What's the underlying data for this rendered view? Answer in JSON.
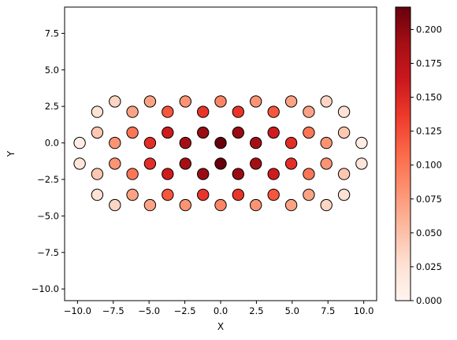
{
  "chart_data": {
    "type": "scatter",
    "xlabel": "X",
    "ylabel": "Y",
    "xlim": [
      -10.9,
      10.9
    ],
    "ylim": [
      -10.8,
      9.3
    ],
    "xticks": [
      -10.0,
      -7.5,
      -5.0,
      -2.5,
      0.0,
      2.5,
      5.0,
      7.5,
      10.0
    ],
    "xtick_labels": [
      "−10.0",
      "−7.5",
      "−5.0",
      "−2.5",
      "0.0",
      "2.5",
      "5.0",
      "7.5",
      "10.0"
    ],
    "yticks": [
      -10.0,
      -7.5,
      -5.0,
      -2.5,
      0.0,
      2.5,
      5.0,
      7.5
    ],
    "ytick_labels": [
      "−10.0",
      "−7.5",
      "−5.0",
      "−2.5",
      "0.0",
      "2.5",
      "5.0",
      "7.5"
    ],
    "grid": false,
    "colormap": "Reds",
    "colorbar": {
      "range": [
        0.0,
        0.2165
      ],
      "ticks": [
        0.0,
        0.025,
        0.05,
        0.075,
        0.1,
        0.125,
        0.15,
        0.175,
        0.2
      ],
      "tick_labels": [
        "0.000",
        "0.025",
        "0.050",
        "0.075",
        "0.100",
        "0.125",
        "0.150",
        "0.175",
        "0.200"
      ]
    },
    "marker_edge_color": "#000000",
    "points": [
      {
        "x": -9.85,
        "y": 0.0,
        "v": 0.01
      },
      {
        "x": 9.85,
        "y": 0.0,
        "v": 0.01
      },
      {
        "x": -9.85,
        "y": -1.42,
        "v": 0.02
      },
      {
        "x": 9.85,
        "y": -1.42,
        "v": 0.02
      },
      {
        "x": -8.62,
        "y": 2.13,
        "v": 0.025
      },
      {
        "x": -8.62,
        "y": 0.71,
        "v": 0.045
      },
      {
        "x": -8.62,
        "y": -2.13,
        "v": 0.045
      },
      {
        "x": -8.62,
        "y": -3.55,
        "v": 0.025
      },
      {
        "x": 8.62,
        "y": 2.13,
        "v": 0.025
      },
      {
        "x": 8.62,
        "y": 0.71,
        "v": 0.045
      },
      {
        "x": 8.62,
        "y": -2.13,
        "v": 0.045
      },
      {
        "x": 8.62,
        "y": -3.55,
        "v": 0.025
      },
      {
        "x": -7.39,
        "y": 2.84,
        "v": 0.035
      },
      {
        "x": -7.39,
        "y": 0.0,
        "v": 0.08
      },
      {
        "x": -7.39,
        "y": -1.42,
        "v": 0.08
      },
      {
        "x": -7.39,
        "y": -4.26,
        "v": 0.035
      },
      {
        "x": 7.39,
        "y": 2.84,
        "v": 0.035
      },
      {
        "x": 7.39,
        "y": 0.0,
        "v": 0.08
      },
      {
        "x": 7.39,
        "y": -1.42,
        "v": 0.08
      },
      {
        "x": 7.39,
        "y": -4.26,
        "v": 0.035
      },
      {
        "x": -6.16,
        "y": 2.13,
        "v": 0.07
      },
      {
        "x": -6.16,
        "y": 0.71,
        "v": 0.1
      },
      {
        "x": -6.16,
        "y": -2.13,
        "v": 0.1
      },
      {
        "x": -6.16,
        "y": -3.55,
        "v": 0.07
      },
      {
        "x": 6.16,
        "y": 2.13,
        "v": 0.07
      },
      {
        "x": 6.16,
        "y": 0.71,
        "v": 0.1
      },
      {
        "x": 6.16,
        "y": -2.13,
        "v": 0.1
      },
      {
        "x": 6.16,
        "y": -3.55,
        "v": 0.07
      },
      {
        "x": -4.93,
        "y": 2.84,
        "v": 0.07
      },
      {
        "x": -4.93,
        "y": 0.0,
        "v": 0.145
      },
      {
        "x": -4.93,
        "y": -1.42,
        "v": 0.145
      },
      {
        "x": -4.93,
        "y": -4.26,
        "v": 0.07
      },
      {
        "x": 4.93,
        "y": 2.84,
        "v": 0.07
      },
      {
        "x": 4.93,
        "y": 0.0,
        "v": 0.145
      },
      {
        "x": 4.93,
        "y": -1.42,
        "v": 0.145
      },
      {
        "x": 4.93,
        "y": -4.26,
        "v": 0.07
      },
      {
        "x": -3.7,
        "y": 2.13,
        "v": 0.12
      },
      {
        "x": -3.7,
        "y": 0.71,
        "v": 0.16
      },
      {
        "x": -3.7,
        "y": -2.13,
        "v": 0.16
      },
      {
        "x": -3.7,
        "y": -3.55,
        "v": 0.12
      },
      {
        "x": 3.7,
        "y": 2.13,
        "v": 0.12
      },
      {
        "x": 3.7,
        "y": 0.71,
        "v": 0.16
      },
      {
        "x": 3.7,
        "y": -2.13,
        "v": 0.16
      },
      {
        "x": 3.7,
        "y": -3.55,
        "v": 0.12
      },
      {
        "x": -2.46,
        "y": 2.84,
        "v": 0.08
      },
      {
        "x": -2.46,
        "y": 0.0,
        "v": 0.19
      },
      {
        "x": -2.46,
        "y": -1.42,
        "v": 0.19
      },
      {
        "x": -2.46,
        "y": -4.26,
        "v": 0.08
      },
      {
        "x": 2.46,
        "y": 2.84,
        "v": 0.08
      },
      {
        "x": 2.46,
        "y": 0.0,
        "v": 0.19
      },
      {
        "x": 2.46,
        "y": -1.42,
        "v": 0.19
      },
      {
        "x": 2.46,
        "y": -4.26,
        "v": 0.08
      },
      {
        "x": -1.23,
        "y": 2.13,
        "v": 0.14
      },
      {
        "x": -1.23,
        "y": 0.71,
        "v": 0.195
      },
      {
        "x": -1.23,
        "y": -2.13,
        "v": 0.195
      },
      {
        "x": -1.23,
        "y": -3.55,
        "v": 0.14
      },
      {
        "x": 1.23,
        "y": 2.13,
        "v": 0.14
      },
      {
        "x": 1.23,
        "y": 0.71,
        "v": 0.195
      },
      {
        "x": 1.23,
        "y": -2.13,
        "v": 0.195
      },
      {
        "x": 1.23,
        "y": -3.55,
        "v": 0.14
      },
      {
        "x": 0.0,
        "y": 2.84,
        "v": 0.09
      },
      {
        "x": 0.0,
        "y": 0.0,
        "v": 0.2165
      },
      {
        "x": 0.0,
        "y": -1.42,
        "v": 0.2165
      },
      {
        "x": 0.0,
        "y": -4.26,
        "v": 0.09
      }
    ]
  }
}
